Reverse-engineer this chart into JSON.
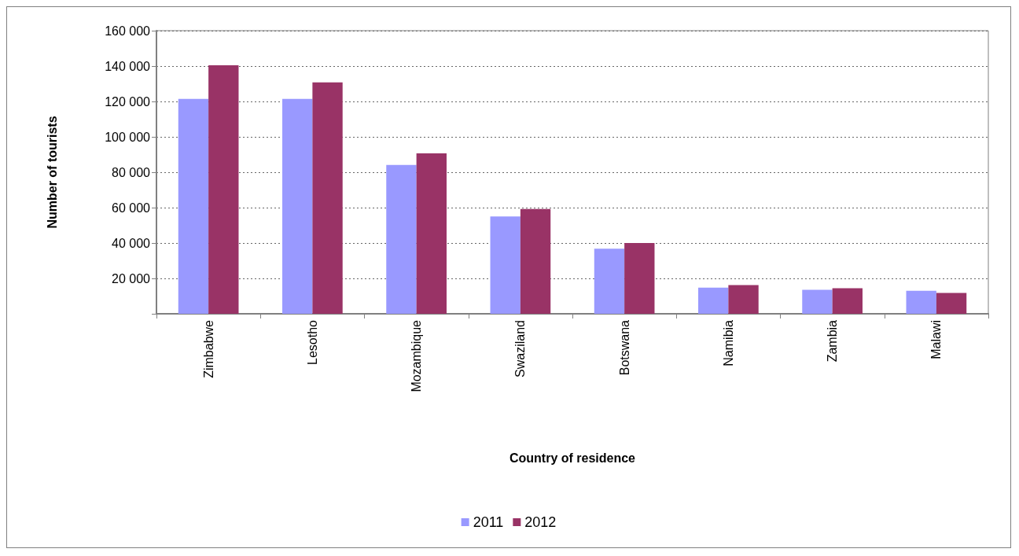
{
  "chart_data": {
    "type": "bar",
    "xlabel": "Country of residence",
    "ylabel": "Number of tourists",
    "categories": [
      "Zimbabwe",
      "Lesotho",
      "Mozambique",
      "Swaziland",
      "Botswana",
      "Namibia",
      "Zambia",
      "Malawi"
    ],
    "series": [
      {
        "name": "2011",
        "color": "#9999ff",
        "values": [
          121500,
          121500,
          84100,
          55000,
          36800,
          14800,
          13600,
          13000
        ]
      },
      {
        "name": "2012",
        "color": "#993366",
        "values": [
          140500,
          130800,
          90700,
          59200,
          40000,
          16200,
          14500,
          11800
        ]
      }
    ],
    "ylim": [
      0,
      160000
    ],
    "yticks": [
      {
        "value": 0,
        "label": null
      },
      {
        "value": 20000,
        "label": "20 000"
      },
      {
        "value": 40000,
        "label": "40 000"
      },
      {
        "value": 60000,
        "label": "60 000"
      },
      {
        "value": 80000,
        "label": "80 000"
      },
      {
        "value": 100000,
        "label": "100 000"
      },
      {
        "value": 120000,
        "label": "120 000"
      },
      {
        "value": 140000,
        "label": "140 000"
      },
      {
        "value": 160000,
        "label": "160 000"
      }
    ],
    "grid": "y",
    "legend": "bottom"
  }
}
